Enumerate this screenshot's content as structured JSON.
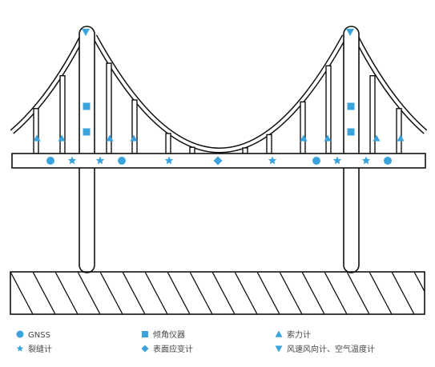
{
  "legend": {
    "items": [
      {
        "icon": "circle",
        "label": "GNSS"
      },
      {
        "icon": "square",
        "label": "倾角仪器"
      },
      {
        "icon": "triangle-up",
        "label": "索力计"
      },
      {
        "icon": "star",
        "label": "裂缝计"
      },
      {
        "icon": "diamond",
        "label": "表面应变计"
      },
      {
        "icon": "triangle-down",
        "label": "风速风向计、空气温度计"
      }
    ]
  }
}
